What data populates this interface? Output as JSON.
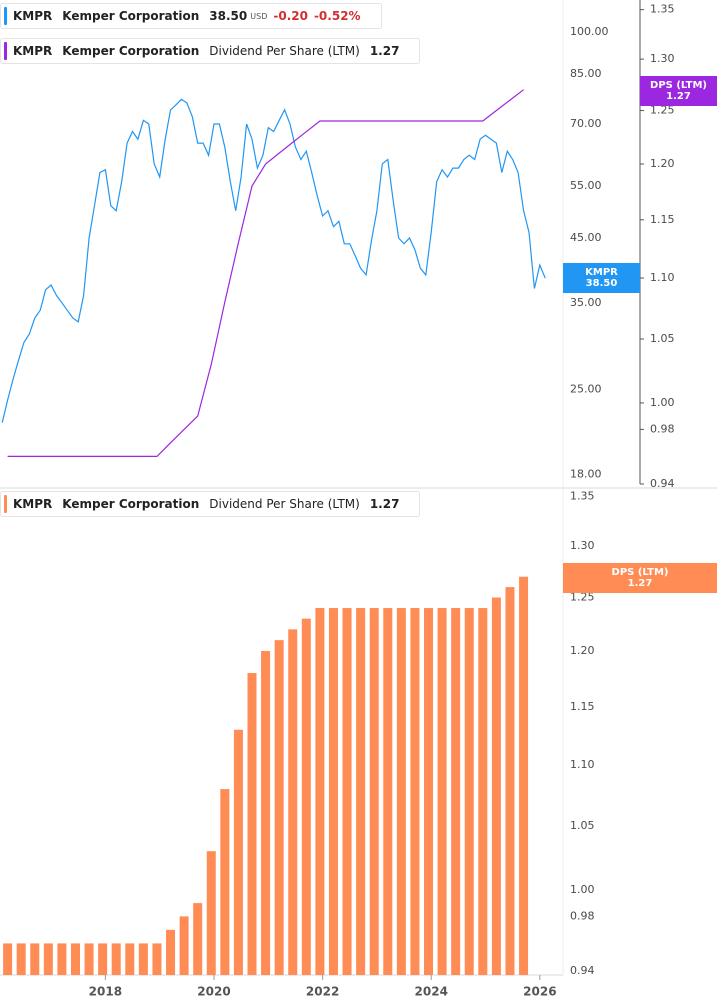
{
  "chart_data": [
    {
      "type": "line",
      "log_scale": true,
      "xlim": [
        2016.06,
        2026.5
      ],
      "ylim": [
        17.07,
        113.2
      ],
      "yticks": [
        {
          "value": 100,
          "label": "100.00"
        },
        {
          "value": 85,
          "label": "85.00"
        },
        {
          "value": 70,
          "label": "70.00"
        },
        {
          "value": 55,
          "label": "55.00"
        },
        {
          "value": 45,
          "label": "45.00"
        },
        {
          "value": 35,
          "label": "35.00"
        },
        {
          "value": 25,
          "label": "25.00"
        },
        {
          "value": 18,
          "label": "18.00"
        }
      ],
      "y2lim": [
        0.94,
        1.36
      ],
      "y2ticks": [
        1.35,
        {
          "value": 1.3,
          "label": "1.30"
        },
        1.25,
        {
          "value": 1.2,
          "label": "1.20"
        },
        1.15,
        {
          "value": 1.1,
          "label": "1.10"
        },
        1.05,
        {
          "value": 1,
          "label": "1.00"
        },
        0.98,
        0.94
      ],
      "series": [
        {
          "name": "KMPR",
          "company": "Kemper Corporation",
          "last": "38.50",
          "currency": "USD",
          "change": "-0.20",
          "change_pct": "-0.52%",
          "color": "#2196f3",
          "badge": [
            "KMPR",
            "38.50"
          ],
          "x": [
            2016.1,
            2016.2,
            2016.3,
            2016.4,
            2016.5,
            2016.6,
            2016.7,
            2016.8,
            2016.9,
            2017.0,
            2017.1,
            2017.2,
            2017.3,
            2017.4,
            2017.5,
            2017.6,
            2017.7,
            2017.8,
            2017.9,
            2018.0,
            2018.1,
            2018.2,
            2018.3,
            2018.4,
            2018.5,
            2018.6,
            2018.7,
            2018.8,
            2018.9,
            2019.0,
            2019.1,
            2019.2,
            2019.3,
            2019.4,
            2019.5,
            2019.6,
            2019.7,
            2019.8,
            2019.9,
            2020.0,
            2020.1,
            2020.2,
            2020.3,
            2020.4,
            2020.5,
            2020.6,
            2020.7,
            2020.8,
            2020.9,
            2021.0,
            2021.1,
            2021.2,
            2021.3,
            2021.4,
            2021.5,
            2021.6,
            2021.7,
            2021.8,
            2021.9,
            2022.0,
            2022.1,
            2022.2,
            2022.3,
            2022.4,
            2022.5,
            2022.6,
            2022.7,
            2022.8,
            2022.9,
            2023.0,
            2023.1,
            2023.2,
            2023.3,
            2023.4,
            2023.5,
            2023.6,
            2023.7,
            2023.8,
            2023.9,
            2024.0,
            2024.1,
            2024.2,
            2024.3,
            2024.4,
            2024.5,
            2024.6,
            2024.7,
            2024.8,
            2024.9,
            2025.0,
            2025.1,
            2025.2,
            2025.3,
            2025.4,
            2025.5,
            2025.6,
            2025.7,
            2025.8,
            2025.9,
            2026.0,
            2026.1
          ],
          "values": [
            22,
            24,
            26,
            28,
            30,
            31,
            33,
            34,
            36.8,
            37.5,
            36,
            35,
            34,
            33,
            32.5,
            36,
            45,
            51,
            58,
            58.6,
            51,
            50,
            56,
            65,
            68,
            66,
            71,
            70,
            60,
            57,
            65.8,
            73.9,
            75.4,
            77,
            76,
            72,
            65,
            65,
            62,
            70,
            70,
            64,
            56,
            50,
            57,
            70,
            66,
            59,
            62,
            69,
            68,
            71,
            74,
            70,
            64,
            61,
            63,
            58,
            53,
            49,
            50,
            47,
            48,
            44,
            44,
            42,
            40,
            39,
            44.6,
            50,
            60,
            61,
            52,
            45,
            44,
            45,
            43,
            40,
            39,
            46,
            56,
            58.6,
            57,
            59,
            59,
            61,
            62,
            61,
            66,
            67,
            66,
            65,
            58,
            63,
            61,
            58,
            50,
            46,
            37,
            40.5,
            38.5
          ]
        },
        {
          "name": "Dividend Per Share (LTM)",
          "ticker": "KMPR",
          "company": "Kemper Corporation",
          "last": "1.27",
          "color": "#9c27e0",
          "axis": "y2",
          "badge": [
            "DPS (LTM)",
            "1.27"
          ],
          "x": [
            2016.2,
            2016.45,
            2016.7,
            2016.95,
            2017.2,
            2017.45,
            2017.7,
            2017.95,
            2018.2,
            2018.45,
            2018.7,
            2018.95,
            2019.2,
            2019.45,
            2019.7,
            2019.95,
            2020.2,
            2020.45,
            2020.7,
            2020.95,
            2021.2,
            2021.45,
            2021.7,
            2021.95,
            2022.2,
            2022.45,
            2022.7,
            2022.95,
            2023.2,
            2023.45,
            2023.7,
            2023.95,
            2024.2,
            2024.45,
            2024.7,
            2024.95,
            2025.2,
            2025.45,
            2025.7
          ],
          "values": [
            0.96,
            0.96,
            0.96,
            0.96,
            0.96,
            0.96,
            0.96,
            0.96,
            0.96,
            0.96,
            0.96,
            0.96,
            0.97,
            0.98,
            0.99,
            1.03,
            1.08,
            1.13,
            1.18,
            1.2,
            1.21,
            1.22,
            1.23,
            1.24,
            1.24,
            1.24,
            1.24,
            1.24,
            1.24,
            1.24,
            1.24,
            1.24,
            1.24,
            1.24,
            1.24,
            1.24,
            1.25,
            1.26,
            1.27
          ]
        }
      ]
    },
    {
      "type": "bar",
      "log_scale": true,
      "xlim": [
        2016.06,
        2026.5
      ],
      "xticks": [
        2018,
        2020,
        2022,
        2024,
        2026
      ],
      "ylim": [
        0.94,
        1.36
      ],
      "yticks": [
        1.35,
        {
          "value": 1.3,
          "label": "1.30"
        },
        1.25,
        {
          "value": 1.2,
          "label": "1.20"
        },
        1.15,
        {
          "value": 1.1,
          "label": "1.10"
        },
        1.05,
        {
          "value": 1,
          "label": "1.00"
        },
        0.98,
        0.94
      ],
      "series": [
        {
          "name": "Dividend Per Share (LTM)",
          "ticker": "KMPR",
          "company": "Kemper Corporation",
          "last": "1.27",
          "color": "#ff8c55",
          "badge": [
            "DPS (LTM)",
            "1.27"
          ],
          "x": [
            2016.2,
            2016.45,
            2016.7,
            2016.95,
            2017.2,
            2017.45,
            2017.7,
            2017.95,
            2018.2,
            2018.45,
            2018.7,
            2018.95,
            2019.2,
            2019.45,
            2019.7,
            2019.95,
            2020.2,
            2020.45,
            2020.7,
            2020.95,
            2021.2,
            2021.45,
            2021.7,
            2021.95,
            2022.2,
            2022.45,
            2022.7,
            2022.95,
            2023.2,
            2023.45,
            2023.7,
            2023.95,
            2024.2,
            2024.45,
            2024.7,
            2024.95,
            2025.2,
            2025.45,
            2025.7
          ],
          "values": [
            0.96,
            0.96,
            0.96,
            0.96,
            0.96,
            0.96,
            0.96,
            0.96,
            0.96,
            0.96,
            0.96,
            0.96,
            0.97,
            0.98,
            0.99,
            1.03,
            1.08,
            1.13,
            1.18,
            1.2,
            1.21,
            1.22,
            1.23,
            1.24,
            1.24,
            1.24,
            1.24,
            1.24,
            1.24,
            1.24,
            1.24,
            1.24,
            1.24,
            1.24,
            1.24,
            1.24,
            1.25,
            1.26,
            1.27
          ]
        }
      ]
    }
  ]
}
